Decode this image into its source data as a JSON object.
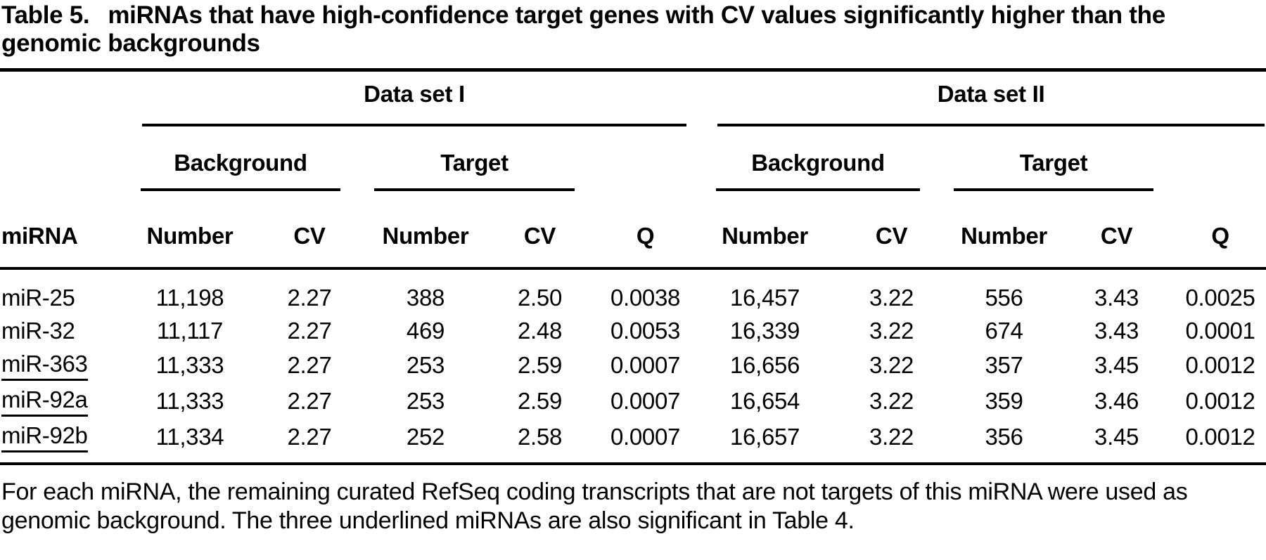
{
  "title": {
    "label": "Table 5.",
    "text": "miRNAs that have high-confidence target genes with CV values significantly higher than the genomic backgrounds"
  },
  "colors": {
    "text": "#000000",
    "background": "#ffffff",
    "rule": "#000000"
  },
  "table": {
    "header": {
      "group1": "Data set I",
      "group2": "Data set II",
      "background": "Background",
      "target": "Target",
      "mirna": "miRNA",
      "number": "Number",
      "cv": "CV",
      "q": "Q"
    },
    "rows": [
      {
        "mirna": "miR-25",
        "underlined": false,
        "cells": [
          "11,198",
          "2.27",
          "388",
          "2.50",
          "0.0038",
          "16,457",
          "3.22",
          "556",
          "3.43",
          "0.0025"
        ]
      },
      {
        "mirna": "miR-32",
        "underlined": false,
        "cells": [
          "11,117",
          "2.27",
          "469",
          "2.48",
          "0.0053",
          "16,339",
          "3.22",
          "674",
          "3.43",
          "0.0001"
        ]
      },
      {
        "mirna": "miR-363",
        "underlined": true,
        "cells": [
          "11,333",
          "2.27",
          "253",
          "2.59",
          "0.0007",
          "16,656",
          "3.22",
          "357",
          "3.45",
          "0.0012"
        ]
      },
      {
        "mirna": "miR-92a",
        "underlined": true,
        "cells": [
          "11,333",
          "2.27",
          "253",
          "2.59",
          "0.0007",
          "16,654",
          "3.22",
          "359",
          "3.46",
          "0.0012"
        ]
      },
      {
        "mirna": "miR-92b",
        "underlined": true,
        "cells": [
          "11,334",
          "2.27",
          "252",
          "2.58",
          "0.0007",
          "16,657",
          "3.22",
          "356",
          "3.45",
          "0.0012"
        ]
      }
    ]
  },
  "footnote": "For each miRNA, the remaining curated RefSeq coding transcripts that are not targets of this miRNA were used as genomic background. The three underlined miRNAs are also significant in Table 4."
}
